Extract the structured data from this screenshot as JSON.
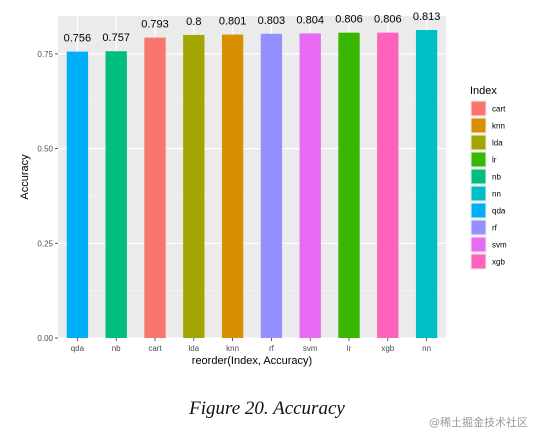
{
  "chart_data": {
    "type": "bar",
    "categories": [
      "qda",
      "nb",
      "cart",
      "lda",
      "knn",
      "rf",
      "svm",
      "lr",
      "xgb",
      "nn"
    ],
    "values": [
      0.756,
      0.757,
      0.793,
      0.8,
      0.801,
      0.803,
      0.804,
      0.806,
      0.806,
      0.813
    ],
    "value_labels": [
      "0.756",
      "0.757",
      "0.793",
      "0.8",
      "0.801",
      "0.803",
      "0.804",
      "0.806",
      "0.806",
      "0.813"
    ],
    "xlabel": "reorder(Index, Accuracy)",
    "ylabel": "Accuracy",
    "ylim": [
      0,
      0.85
    ],
    "yticks": [
      0,
      0.25,
      0.5,
      0.75
    ],
    "ytick_labels": [
      "0.00",
      "0.25",
      "0.50",
      "0.75"
    ],
    "grid": true,
    "legend": {
      "title": "Index",
      "placement": "right",
      "entries": [
        "cart",
        "knn",
        "lda",
        "lr",
        "nb",
        "nn",
        "qda",
        "rf",
        "svm",
        "xgb"
      ]
    },
    "colors": {
      "cart": "#F8766D",
      "knn": "#D89000",
      "lda": "#A3A500",
      "lr": "#39B600",
      "nb": "#00BF7D",
      "nn": "#00BFC4",
      "qda": "#00B0F6",
      "rf": "#9590FF",
      "svm": "#E76BF3",
      "xgb": "#FF62BC"
    }
  },
  "caption": "Figure 20. Accuracy",
  "watermark": "@稀土掘金技术社区"
}
